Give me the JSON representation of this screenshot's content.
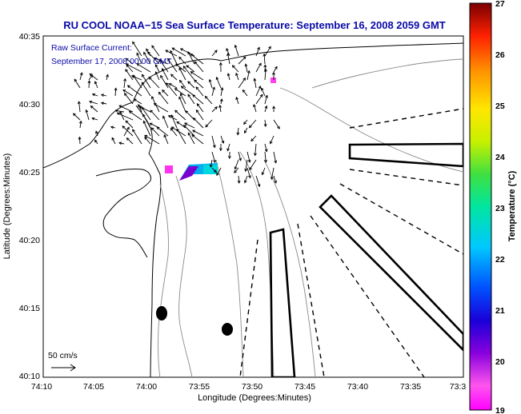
{
  "title": "RU COOL  NOAA−15  Sea Surface Temperature:  September 16, 2008 2059 GMT",
  "annotation": {
    "line1": "Raw Surface Current:",
    "line2": "September 17, 2008 00:00 GMT"
  },
  "scale": {
    "label": "50 cm/s"
  },
  "axes": {
    "xlabel": "Longitude (Degrees:Minutes)",
    "ylabel": "Latitude (Degrees:Minutes)",
    "xticks": [
      "74:10",
      "74:05",
      "74:00",
      "73:55",
      "73:50",
      "73:45",
      "73:40",
      "73:35",
      "73:3"
    ],
    "yticks": [
      "40:35",
      "40:30",
      "40:25",
      "40:20",
      "40:15",
      "40:10"
    ]
  },
  "colorbar": {
    "label": "Temperature (°C)",
    "ticks": [
      "27",
      "26",
      "25",
      "24",
      "23",
      "22",
      "21",
      "20",
      "19"
    ]
  },
  "colors": {
    "title": "#0a0aa8",
    "contour": "#8a8a8a"
  }
}
